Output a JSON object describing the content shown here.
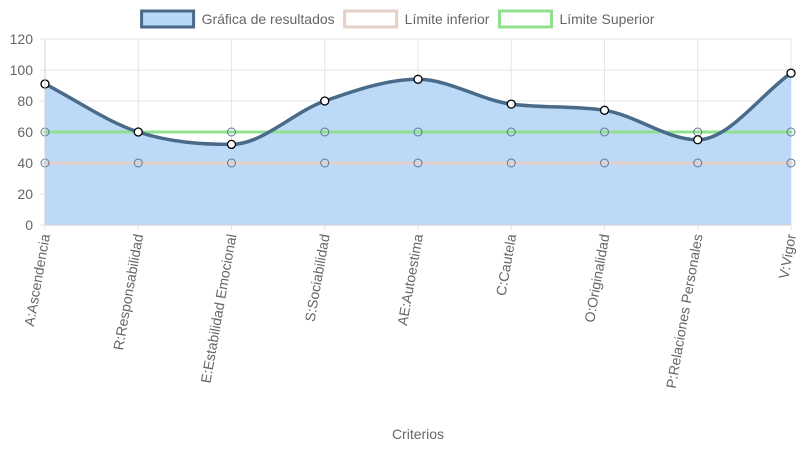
{
  "chart_data": {
    "type": "area",
    "title": "",
    "xlabel": "Criterios",
    "ylabel": "",
    "ylim": [
      0,
      120
    ],
    "yticks": [
      0,
      20,
      40,
      60,
      80,
      100,
      120
    ],
    "grid": true,
    "legend_position": "top",
    "categories": [
      "A:Ascendencia",
      "R:Responsabilidad",
      "E:Estabilidad Emocional",
      "S:Sociabilidad",
      "AE:Autoestima",
      "C:Cautela",
      "O:Originalidad",
      "P:Relaciones Personales",
      "V:Vigor"
    ],
    "series": [
      {
        "name": "Gráfica de resultados",
        "values": [
          91,
          60,
          52,
          80,
          94,
          78,
          74,
          55,
          98
        ],
        "line_color": "#4a6a8a",
        "fill_color": "#b8d8f8",
        "filled": true
      },
      {
        "name": "Límite inferior",
        "values": [
          40,
          40,
          40,
          40,
          40,
          40,
          40,
          40,
          40
        ],
        "line_color": "#e6cfc6",
        "fill_color": "#ffffff",
        "filled": false
      },
      {
        "name": "Límite Superior",
        "values": [
          60,
          60,
          60,
          60,
          60,
          60,
          60,
          60,
          60
        ],
        "line_color": "#90e090",
        "fill_color": "#ffffff",
        "filled": false
      }
    ]
  }
}
